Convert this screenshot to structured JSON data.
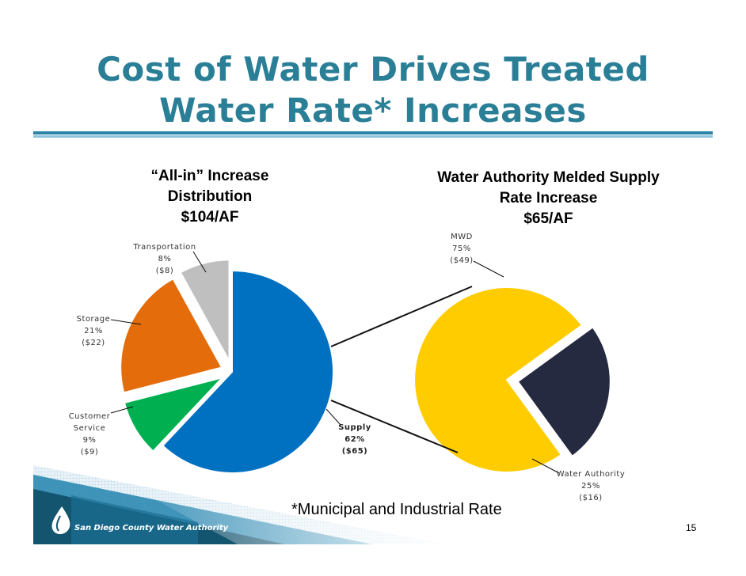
{
  "slide": {
    "title_line1": "Cost of Water Drives Treated",
    "title_line2": "Water Rate* Increases",
    "footnote": "*Municipal and Industrial Rate",
    "page_number": "15",
    "logo_text": "San Diego County Water Authority",
    "colors": {
      "title": "#2a7f97",
      "rule": "#2b83a6"
    }
  },
  "chart_data": [
    {
      "type": "pie",
      "title_lines": [
        "“All-in” Increase",
        "Distribution",
        "$104/AF"
      ],
      "slices": [
        {
          "name": "Supply",
          "percent": "62%",
          "amount": "($65)",
          "value": 62,
          "color": "#0070c0"
        },
        {
          "name_lines": [
            "Customer",
            "Service"
          ],
          "percent": "9%",
          "amount": "($9)",
          "value": 9,
          "color": "#00b050"
        },
        {
          "name": "Storage",
          "percent": "21%",
          "amount": "($22)",
          "value": 21,
          "color": "#e46c0a"
        },
        {
          "name": "Transportation",
          "percent": "8%",
          "amount": "($8)",
          "value": 8,
          "color": "#bfbfbf"
        }
      ]
    },
    {
      "type": "pie",
      "title_lines": [
        "Water Authority Melded Supply",
        "Rate Increase",
        "$65/AF"
      ],
      "slices": [
        {
          "name": "MWD",
          "percent": "75%",
          "amount": "($49)",
          "value": 75,
          "color": "#ffcc00"
        },
        {
          "name": "Water Authority",
          "percent": "25%",
          "amount": "($16)",
          "value": 25,
          "color": "#262a40"
        }
      ]
    }
  ]
}
